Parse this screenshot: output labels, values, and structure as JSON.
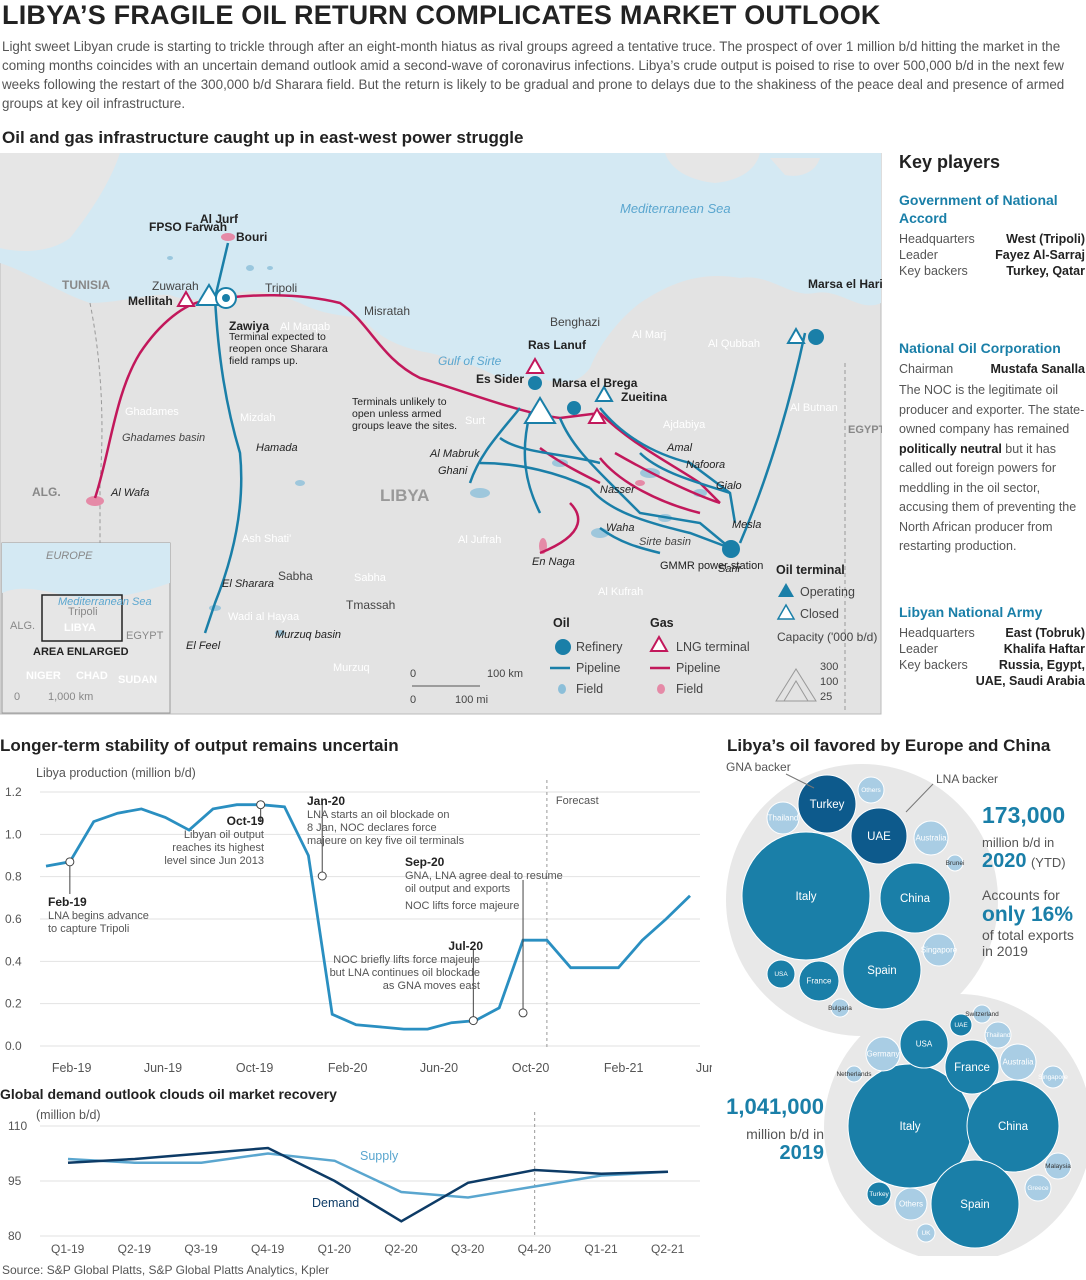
{
  "headline": "LIBYA’S FRAGILE OIL RETURN COMPLICATES MARKET OUTLOOK",
  "intro": "Light sweet Libyan crude is starting to trickle through after an eight-month hiatus as rival groups agreed a tentative truce. The prospect of over 1 million b/d hitting the market in the coming months coincides with an uncertain demand outlook amid a second-wave of coronavirus infections. Libya’s crude output is poised to rise to over 500,000 b/d in the next few weeks following the restart of the 300,000 b/d Sharara field. But the return is likely to be gradual and prone to delays due to the shakiness of the peace deal and presence of armed groups at key oil infrastructure.",
  "map": {
    "title": "Oil and gas infrastructure caught up in east-west power struggle",
    "sea": "Mediterranean Sea",
    "gulf": "Gulf of Sirte",
    "country": "LIBYA",
    "neighbors": [
      "TUNISIA",
      "ALG.",
      "EGYPT"
    ],
    "places": [
      "FPSO Farwah",
      "Al Jurf",
      "Bouri",
      "Zuwarah",
      "Mellitah",
      "Tripoli",
      "Zawiya",
      "Misratah",
      "Al Marqab",
      "Benghazi",
      "Al Marj",
      "Al Qubbah",
      "Marsa el Hariga (Tobruk)",
      "Ras Lanuf",
      "Es Sider",
      "Marsa el Brega",
      "Zueitina",
      "Al Butnan",
      "Ajdabiya",
      "Amal",
      "Nafoora",
      "Gialo",
      "Mesla",
      "Sarir",
      "Nasser",
      "Waha",
      "Sirte basin",
      "GMMR power station",
      "Al Mabruk",
      "Ghani",
      "Surt",
      "Al Jufrah",
      "En Naga",
      "Ghadames",
      "Ghadames basin",
      "Al Wafa",
      "Mizdah",
      "Hamada",
      "Ash Shati'",
      "Sabha",
      "El Sharara",
      "Wadi al Hayaa",
      "Tmassah",
      "Murzuq basin",
      "El Feel",
      "Murzuq",
      "Al Kufrah"
    ],
    "notes": {
      "zawiya": "Terminal expected to reopen once Sharara field ramps up.",
      "terminals": "Terminals unlikely to open unless armed groups leave the sites."
    },
    "legend": {
      "oil_title": "Oil",
      "gas_title": "Gas",
      "terminal_title": "Oil terminal",
      "refinery": "Refinery",
      "oil_pipeline": "Pipeline",
      "oil_field": "Field",
      "lng": "LNG terminal",
      "gas_pipeline": "Pipeline",
      "gas_field": "Field",
      "operating": "Operating",
      "closed": "Closed",
      "capacity_title": "Capacity ('000 b/d)",
      "capacity_values": [
        "300",
        "100",
        "25"
      ],
      "scale_km": "100 km",
      "scale_mi": "100 mi",
      "scale_zero": "0"
    },
    "inset": {
      "europe": "EUROPE",
      "sea": "Mediterranean Sea",
      "tripoli": "Tripoli",
      "libya": "LIBYA",
      "alg": "ALG.",
      "egypt": "EGYPT",
      "niger": "NIGER",
      "chad": "CHAD",
      "sudan": "SUDAN",
      "area": "AREA ENLARGED",
      "scale": "1,000 km",
      "scale_zero": "0"
    }
  },
  "key_players": {
    "title": "Key players",
    "gna": {
      "name": "Government of National Accord",
      "rows": [
        [
          "Headquarters",
          "West (Tripoli)"
        ],
        [
          "Leader",
          "Fayez Al-Sarraj"
        ],
        [
          "Key backers",
          "Turkey, Qatar"
        ]
      ]
    },
    "noc": {
      "name": "National Oil Corporation",
      "rows": [
        [
          "Chairman",
          "Mustafa Sanalla"
        ]
      ],
      "text_pre": "The NOC is the legitimate oil producer and exporter. The state-owned company has remained ",
      "text_bold": "politically neutral",
      "text_post": " but it has called out foreign powers for meddling in the oil sector, accusing them of preventing the North African producer from restarting production."
    },
    "lna": {
      "name": "Libyan National Army",
      "rows": [
        [
          "Headquarters",
          "East (Tobruk)"
        ],
        [
          "Leader",
          "Khalifa Haftar"
        ],
        [
          "Key backers",
          "Russia, Egypt,"
        ]
      ],
      "extra": "UAE, Saudi Arabia"
    }
  },
  "exports": {
    "title": "Libya’s oil favored by Europe and China",
    "gna_backer": "GNA backer",
    "lna_backer": "LNA backer",
    "stat2020": {
      "value": "173,000",
      "unit": "million b/d in",
      "year": "2020",
      "ytd": "(YTD)",
      "accounts": "Accounts for",
      "share": "only 16%",
      "of": "of total exports",
      "in": "in 2019"
    },
    "stat2019": {
      "value": "1,041,000",
      "unit": "million b/d in",
      "year": "2019"
    }
  },
  "chart_data": [
    {
      "type": "line",
      "title": "Longer-term stability of output remains uncertain",
      "ylabel": "Libya production (million b/d)",
      "ylim": [
        0,
        1.2
      ],
      "yticks": [
        "1.2",
        "1.0",
        "0.8",
        "0.6",
        "0.4",
        "0.2",
        "0.0"
      ],
      "xticks": [
        "Feb-19",
        "Jun-19",
        "Oct-19",
        "Feb-20",
        "Jun-20",
        "Oct-20",
        "Feb-21",
        "Jun-21"
      ],
      "x_start": "2019-01",
      "forecast_label": "Forecast",
      "forecast_from": "2020-10",
      "series": [
        {
          "name": "",
          "values": [
            0.85,
            0.87,
            1.06,
            1.1,
            1.12,
            1.08,
            1.02,
            1.12,
            1.14,
            1.14,
            1.13,
            0.9,
            0.15,
            0.1,
            0.09,
            0.08,
            0.08,
            0.11,
            0.12,
            0.18,
            0.5,
            0.5,
            0.37,
            0.37,
            0.37,
            0.5,
            0.6,
            0.71
          ]
        }
      ],
      "annotations": [
        {
          "title": "Feb-19",
          "text": "LNA begins advance to capture Tripoli"
        },
        {
          "title": "Oct-19",
          "text": "Libyan oil output reaches its highest level since Jun 2013"
        },
        {
          "title": "Jan-20",
          "text": "LNA starts an oil blockade on 8 Jan, NOC declares force majeure on key five oil terminals"
        },
        {
          "title": "Sep-20",
          "text": "GNA, LNA agree deal to resume oil output and exports"
        },
        {
          "title": "",
          "text": "NOC lifts force majeure"
        },
        {
          "title": "Jul-20",
          "text": "NOC briefly lifts force majeure but LNA continues oil blockade as GNA moves east"
        }
      ]
    },
    {
      "type": "line",
      "title": "Global demand outlook clouds oil market recovery",
      "ylabel": "(million b/d)",
      "ylim": [
        80,
        110
      ],
      "yticks": [
        "110",
        "95",
        "80"
      ],
      "categories": [
        "Q1-19",
        "Q2-19",
        "Q3-19",
        "Q4-19",
        "Q1-20",
        "Q2-20",
        "Q3-20",
        "Q4-20",
        "Q1-21",
        "Q2-21"
      ],
      "series": [
        {
          "name": "Supply",
          "color": "#5aa6cf",
          "values": [
            101,
            100,
            100,
            102.5,
            100.5,
            92,
            90.5,
            93.5,
            96.5,
            97.5
          ]
        },
        {
          "name": "Demand",
          "color": "#0d3b66",
          "values": [
            100,
            101,
            102.5,
            104,
            95,
            84,
            94.5,
            98,
            97,
            97.5
          ]
        }
      ]
    },
    {
      "type": "bubble",
      "label": "2020",
      "bubbles": [
        {
          "name": "Italy",
          "r": 64
        },
        {
          "name": "Turkey",
          "r": 29
        },
        {
          "name": "UAE",
          "r": 28
        },
        {
          "name": "China",
          "r": 35
        },
        {
          "name": "Spain",
          "r": 39
        },
        {
          "name": "France",
          "r": 20
        },
        {
          "name": "USA",
          "r": 14
        },
        {
          "name": "Thailand",
          "r": 16
        },
        {
          "name": "Others",
          "r": 13
        },
        {
          "name": "Australia",
          "r": 17
        },
        {
          "name": "Brunei",
          "r": 8
        },
        {
          "name": "Singapore",
          "r": 16
        },
        {
          "name": "Bulgaria",
          "r": 9
        }
      ]
    },
    {
      "type": "bubble",
      "label": "2019",
      "bubbles": [
        {
          "name": "Italy",
          "r": 62
        },
        {
          "name": "China",
          "r": 46
        },
        {
          "name": "Spain",
          "r": 44
        },
        {
          "name": "France",
          "r": 27
        },
        {
          "name": "USA",
          "r": 24
        },
        {
          "name": "Germany",
          "r": 17
        },
        {
          "name": "UAE",
          "r": 11
        },
        {
          "name": "Switzerland",
          "r": 9
        },
        {
          "name": "Thailand",
          "r": 13
        },
        {
          "name": "Australia",
          "r": 18
        },
        {
          "name": "Singapore",
          "r": 11
        },
        {
          "name": "Netherlands",
          "r": 8
        },
        {
          "name": "Malaysia",
          "r": 13
        },
        {
          "name": "Greece",
          "r": 13
        },
        {
          "name": "Turkey",
          "r": 12
        },
        {
          "name": "Others",
          "r": 16
        },
        {
          "name": "UK",
          "r": 9
        }
      ]
    }
  ],
  "sources": "Source: S&P Global Platts, S&P Global Platts Analytics, Kpler"
}
